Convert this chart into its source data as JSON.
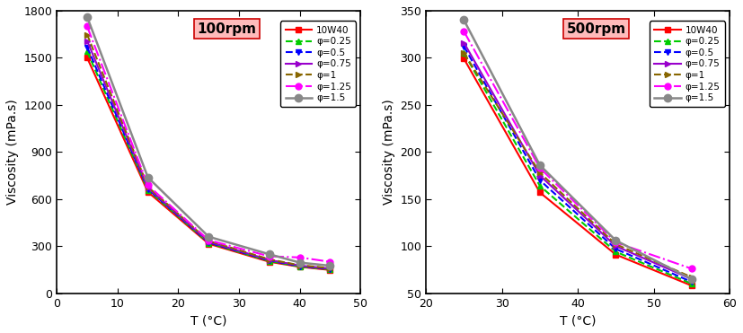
{
  "plot1": {
    "title": "100rpm",
    "xlabel": "T (°C)",
    "ylabel": "Viscosity (mPa.s)",
    "xlim": [
      0,
      50
    ],
    "ylim": [
      0,
      1800
    ],
    "xticks": [
      0,
      10,
      20,
      30,
      40,
      50
    ],
    "yticks": [
      0,
      300,
      600,
      900,
      1200,
      1500,
      1800
    ],
    "series": [
      {
        "label": "10W40",
        "color": "#ff0000",
        "linestyle": "-",
        "marker": "s",
        "markersize": 5,
        "linewidth": 1.5,
        "markevery": 1,
        "x": [
          5,
          15,
          25,
          35,
          40,
          45
        ],
        "y": [
          1500,
          645,
          315,
          200,
          168,
          148
        ]
      },
      {
        "label": "φ=0.25",
        "color": "#00cc00",
        "linestyle": "--",
        "marker": "^",
        "markersize": 5,
        "linewidth": 1.5,
        "x": [
          5,
          15,
          25,
          35,
          40,
          45
        ],
        "y": [
          1540,
          658,
          320,
          205,
          170,
          152
        ]
      },
      {
        "label": "φ=0.5",
        "color": "#0000ff",
        "linestyle": "--",
        "marker": "v",
        "markersize": 5,
        "linewidth": 1.5,
        "x": [
          5,
          15,
          25,
          35,
          40,
          45
        ],
        "y": [
          1568,
          664,
          323,
          208,
          172,
          154
        ]
      },
      {
        "label": "φ=0.75",
        "color": "#9900cc",
        "linestyle": "-",
        "marker": ">",
        "markersize": 5,
        "linewidth": 1.5,
        "x": [
          5,
          15,
          25,
          35,
          40,
          45
        ],
        "y": [
          1608,
          671,
          328,
          212,
          176,
          157
        ]
      },
      {
        "label": "φ=1",
        "color": "#886600",
        "linestyle": "--",
        "marker": ">",
        "markersize": 5,
        "linewidth": 1.5,
        "x": [
          5,
          15,
          25,
          35,
          40,
          45
        ],
        "y": [
          1648,
          678,
          333,
          216,
          178,
          160
        ]
      },
      {
        "label": "φ=1.25",
        "color": "#ff00ff",
        "linestyle": "-.",
        "marker": "o",
        "markersize": 5,
        "linewidth": 1.5,
        "x": [
          5,
          15,
          25,
          35,
          40,
          45
        ],
        "y": [
          1700,
          688,
          338,
          235,
          228,
          200
        ]
      },
      {
        "label": "φ=1.5",
        "color": "#888888",
        "linestyle": "-",
        "marker": "o",
        "markersize": 6,
        "linewidth": 1.8,
        "x": [
          5,
          15,
          25,
          35,
          40,
          45
        ],
        "y": [
          1760,
          738,
          360,
          248,
          195,
          175
        ]
      }
    ]
  },
  "plot2": {
    "title": "500rpm",
    "xlabel": "T (°C)",
    "ylabel": "Viscosity (mPa.s)",
    "xlim": [
      20,
      60
    ],
    "ylim": [
      50,
      350
    ],
    "xticks": [
      20,
      30,
      40,
      50,
      60
    ],
    "yticks": [
      50,
      100,
      150,
      200,
      250,
      300,
      350
    ],
    "series": [
      {
        "label": "10W40",
        "color": "#ff0000",
        "linestyle": "-",
        "marker": "s",
        "markersize": 5,
        "linewidth": 1.5,
        "x": [
          25,
          35,
          45,
          55
        ],
        "y": [
          299,
          157,
          91,
          58
        ]
      },
      {
        "label": "φ=0.25",
        "color": "#00cc00",
        "linestyle": "--",
        "marker": "^",
        "markersize": 5,
        "linewidth": 1.5,
        "x": [
          25,
          35,
          45,
          55
        ],
        "y": [
          305,
          164,
          94,
          60
        ]
      },
      {
        "label": "φ=0.5",
        "color": "#0000ff",
        "linestyle": "--",
        "marker": "v",
        "markersize": 5,
        "linewidth": 1.5,
        "x": [
          25,
          35,
          45,
          55
        ],
        "y": [
          312,
          170,
          97,
          62
        ]
      },
      {
        "label": "φ=0.75",
        "color": "#9900cc",
        "linestyle": "-",
        "marker": ">",
        "markersize": 5,
        "linewidth": 1.5,
        "x": [
          25,
          35,
          45,
          55
        ],
        "y": [
          316,
          175,
          100,
          65
        ]
      },
      {
        "label": "φ=1",
        "color": "#886600",
        "linestyle": "--",
        "marker": ">",
        "markersize": 5,
        "linewidth": 1.5,
        "x": [
          25,
          35,
          45,
          55
        ],
        "y": [
          305,
          178,
          102,
          67
        ]
      },
      {
        "label": "φ=1.25",
        "color": "#ff00ff",
        "linestyle": "-.",
        "marker": "o",
        "markersize": 5,
        "linewidth": 1.5,
        "x": [
          25,
          35,
          45,
          55
        ],
        "y": [
          328,
          183,
          104,
          76
        ]
      },
      {
        "label": "φ=1.5",
        "color": "#888888",
        "linestyle": "-",
        "marker": "o",
        "markersize": 6,
        "linewidth": 1.8,
        "x": [
          25,
          35,
          45,
          55
        ],
        "y": [
          340,
          186,
          106,
          65
        ]
      }
    ]
  },
  "background_color": "#ffffff",
  "title_box_color": "#ffbbbb"
}
